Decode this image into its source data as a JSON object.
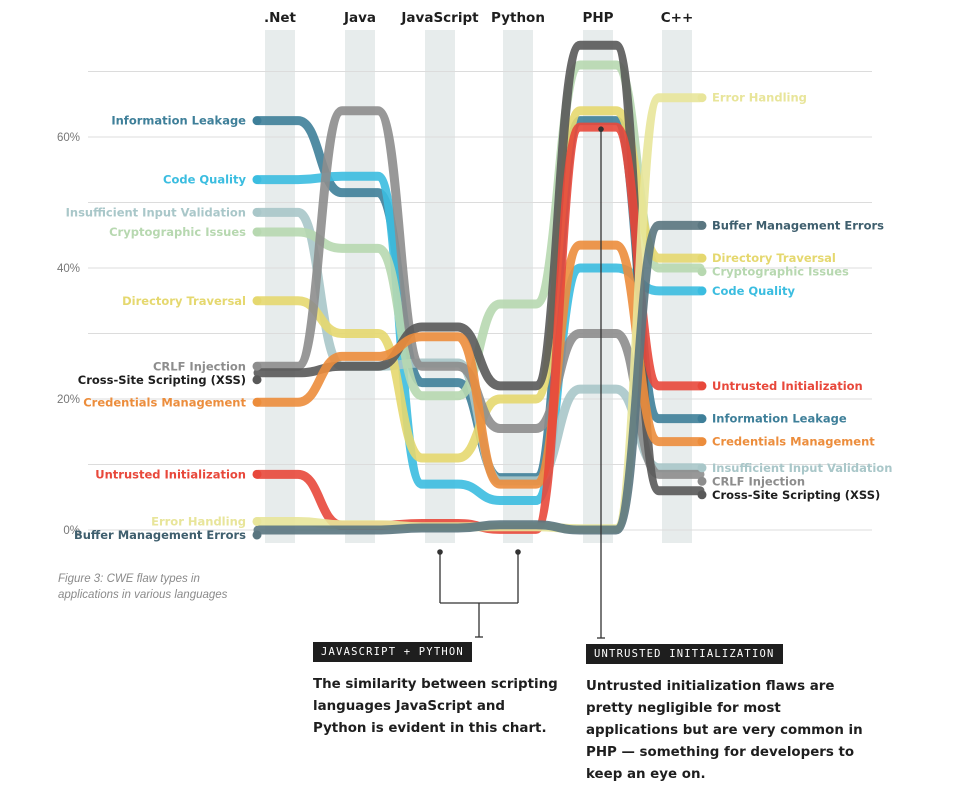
{
  "chart_data": {
    "type": "line",
    "categories": [
      ".Net",
      "Java",
      "JavaScript",
      "Python",
      "PHP",
      "C++"
    ],
    "y_ticks": [
      "0%",
      "20%",
      "40%",
      "60%"
    ],
    "ylim": [
      0,
      75
    ],
    "grid": true,
    "series": [
      {
        "name": "Information Leakage",
        "color": "#3e7f99",
        "values": [
          62.5,
          51.5,
          22.5,
          8.0,
          62.5,
          17.0
        ]
      },
      {
        "name": "Code Quality",
        "color": "#3bbde0",
        "values": [
          53.5,
          54.0,
          7.0,
          4.5,
          40.0,
          36.5
        ]
      },
      {
        "name": "Insufficient Input Validation",
        "color": "#a9c7c9",
        "values": [
          48.5,
          25.0,
          25.5,
          7.5,
          21.5,
          9.5
        ]
      },
      {
        "name": "Cryptographic Issues",
        "color": "#b7d8b0",
        "values": [
          45.5,
          43.0,
          20.5,
          34.5,
          71.0,
          40.0
        ]
      },
      {
        "name": "Directory Traversal",
        "color": "#e5d86f",
        "values": [
          35.0,
          30.0,
          11.0,
          20.0,
          64.0,
          41.5
        ]
      },
      {
        "name": "CRLF Injection",
        "color": "#8d8d8d",
        "values": [
          25.0,
          64.0,
          25.0,
          15.5,
          30.0,
          8.5
        ]
      },
      {
        "name": "Cross-Site Scripting (XSS)",
        "color": "#595959",
        "values": [
          24.0,
          25.0,
          31.0,
          22.0,
          74.0,
          6.0
        ]
      },
      {
        "name": "Credentials Management",
        "color": "#ec8d3c",
        "values": [
          19.5,
          26.5,
          29.5,
          7.0,
          43.5,
          13.5
        ]
      },
      {
        "name": "Untrusted Initialization",
        "color": "#e8483b",
        "values": [
          8.5,
          0.7,
          1.0,
          0.1,
          61.5,
          22.0
        ]
      },
      {
        "name": "Error Handling",
        "color": "#e8e59a",
        "values": [
          1.3,
          0.8,
          0.5,
          0.5,
          0.2,
          66.0
        ]
      },
      {
        "name": "Buffer Management Errors",
        "color": "#5a7680",
        "values": [
          0.0,
          0.0,
          0.3,
          0.8,
          0.0,
          46.5
        ]
      }
    ],
    "left_label_order": [
      "Information Leakage",
      "Code Quality",
      "Insufficient Input Validation",
      "Cryptographic Issues",
      "Directory Traversal",
      "CRLF Injection",
      "Cross-Site Scripting (XSS)",
      "Credentials Management",
      "Untrusted Initialization",
      "Error Handling",
      "Buffer Management Errors"
    ],
    "right_label_order": [
      "Error Handling",
      "Buffer Management Errors",
      "Directory Traversal",
      "Cryptographic Issues",
      "Code Quality",
      "Untrusted Initialization",
      "Information Leakage",
      "Credentials Management",
      "Insufficient Input Validation",
      "CRLF Injection",
      "Cross-Site Scripting (XSS)"
    ]
  },
  "caption": "Figure 3: CWE flaw types in applications in various languages",
  "callouts": {
    "js_python": {
      "tag": "JAVASCRIPT + PYTHON",
      "text": "The similarity between scripting languages JavaScript and Python is evident in this chart."
    },
    "untrusted": {
      "tag": "UNTRUSTED INITIALIZATION",
      "text": "Untrusted initialization flaws are pretty negligible for most applications but are very common in PHP — something for developers to keep an eye on."
    }
  }
}
